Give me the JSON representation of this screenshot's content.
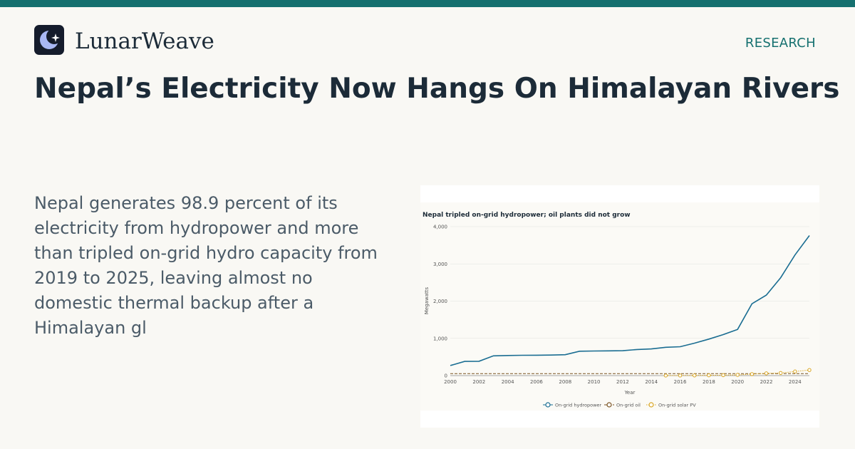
{
  "header": {
    "brand": "LunarWeave",
    "section": "RESEARCH",
    "logo_icon": "crescent-moon-star-icon"
  },
  "article": {
    "headline": "Nepal’s Electricity Now Hangs On Himalayan Rivers",
    "summary": "Nepal generates 98.9 percent of its electricity from hydropower and more than tripled on-grid hydro capacity from 2019 to 2025, leaving almost no domestic thermal backup after a Himalayan gl"
  },
  "colors": {
    "accent": "#15706f",
    "hydro": "#1a6d92",
    "oil": "#7a5321",
    "solar": "#d9a521"
  },
  "chart_data": {
    "type": "line",
    "title": "Nepal tripled on-grid hydropower; oil plants did not grow",
    "xlabel": "Year",
    "ylabel": "Megawatts",
    "xlim": [
      2000,
      2025
    ],
    "ylim": [
      0,
      4000
    ],
    "x_ticks": [
      "2000",
      "2002",
      "2004",
      "2006",
      "2008",
      "2010",
      "2012",
      "2014",
      "2016",
      "2018",
      "2020",
      "2022",
      "2024"
    ],
    "y_ticks": [
      "0",
      "1,000",
      "2,000",
      "3,000",
      "4,000"
    ],
    "grid": true,
    "legend_position": "bottom",
    "series": [
      {
        "name": "On-grid hydropower",
        "x": [
          2000,
          2001,
          2002,
          2003,
          2004,
          2005,
          2006,
          2007,
          2008,
          2009,
          2010,
          2011,
          2012,
          2013,
          2014,
          2015,
          2016,
          2017,
          2018,
          2019,
          2020,
          2021,
          2022,
          2023,
          2024,
          2025
        ],
        "values": [
          270,
          380,
          385,
          530,
          540,
          545,
          548,
          552,
          560,
          655,
          660,
          665,
          668,
          700,
          715,
          760,
          775,
          870,
          980,
          1100,
          1240,
          1930,
          2160,
          2630,
          3240,
          3760
        ]
      },
      {
        "name": "On-grid oil",
        "x": [
          2000,
          2001,
          2002,
          2003,
          2004,
          2005,
          2006,
          2007,
          2008,
          2009,
          2010,
          2011,
          2012,
          2013,
          2014,
          2015,
          2016,
          2017,
          2018,
          2019,
          2020,
          2021,
          2022,
          2023,
          2024,
          2025
        ],
        "values": [
          53,
          53,
          53,
          53,
          53,
          53,
          53,
          53,
          53,
          53,
          53,
          53,
          53,
          53,
          53,
          53,
          53,
          53,
          53,
          53,
          53,
          53,
          53,
          53,
          53,
          53
        ]
      },
      {
        "name": "On-grid solar PV",
        "x": [
          2015,
          2016,
          2017,
          2018,
          2019,
          2020,
          2021,
          2022,
          2023,
          2024,
          2025
        ],
        "values": [
          2,
          3,
          5,
          8,
          12,
          20,
          40,
          60,
          70,
          110,
          150
        ]
      }
    ]
  }
}
